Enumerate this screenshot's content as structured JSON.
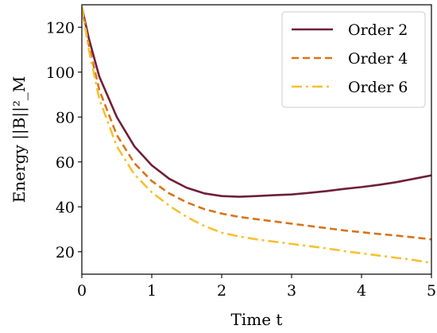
{
  "chart_data": {
    "type": "line",
    "xlabel": "Time t",
    "ylabel": "Energy ||B||²_M",
    "xlim": [
      0,
      5
    ],
    "ylim": [
      10,
      130
    ],
    "xticks": [
      0,
      1,
      2,
      3,
      4,
      5
    ],
    "yticks": [
      20,
      40,
      60,
      80,
      100,
      120
    ],
    "grid": false,
    "legend_position": "top-right",
    "series": [
      {
        "name": "Order 2",
        "color": "#6e1f3a",
        "dash": "solid",
        "x": [
          0,
          0.1,
          0.25,
          0.5,
          0.75,
          1.0,
          1.25,
          1.5,
          1.75,
          2.0,
          2.25,
          2.5,
          2.75,
          3.0,
          3.25,
          3.5,
          3.75,
          4.0,
          4.25,
          4.5,
          4.75,
          5.0
        ],
        "y": [
          129,
          115,
          98,
          80,
          67,
          58.5,
          52.5,
          48.5,
          46,
          44.8,
          44.5,
          44.8,
          45.2,
          45.5,
          46.2,
          47,
          48,
          48.8,
          49.8,
          51,
          52.5,
          54
        ]
      },
      {
        "name": "Order 4",
        "color": "#d9731a",
        "dash": "dashed",
        "x": [
          0,
          0.1,
          0.25,
          0.5,
          0.75,
          1.0,
          1.25,
          1.5,
          1.75,
          2.0,
          2.25,
          2.5,
          2.75,
          3.0,
          3.25,
          3.5,
          3.75,
          4.0,
          4.25,
          4.5,
          4.75,
          5.0
        ],
        "y": [
          129,
          112,
          92,
          72,
          59.5,
          51.5,
          46,
          42,
          39,
          37,
          35.5,
          34.5,
          33.5,
          32.5,
          31.5,
          30.5,
          29.5,
          28.7,
          27.9,
          27.2,
          26.4,
          25.5
        ]
      },
      {
        "name": "Order 6",
        "color": "#f5c131",
        "dash": "dashdot",
        "x": [
          0,
          0.1,
          0.25,
          0.5,
          0.75,
          1.0,
          1.25,
          1.5,
          1.75,
          2.0,
          2.25,
          2.5,
          2.75,
          3.0,
          3.25,
          3.5,
          3.75,
          4.0,
          4.25,
          4.5,
          4.75,
          5.0
        ],
        "y": [
          129,
          110,
          88,
          67,
          54.5,
          46.5,
          40.5,
          35.5,
          31.5,
          28.5,
          26.8,
          25.5,
          24.5,
          23.5,
          22.5,
          21.5,
          20.3,
          19.3,
          18.3,
          17.3,
          16.3,
          15
        ]
      }
    ]
  }
}
